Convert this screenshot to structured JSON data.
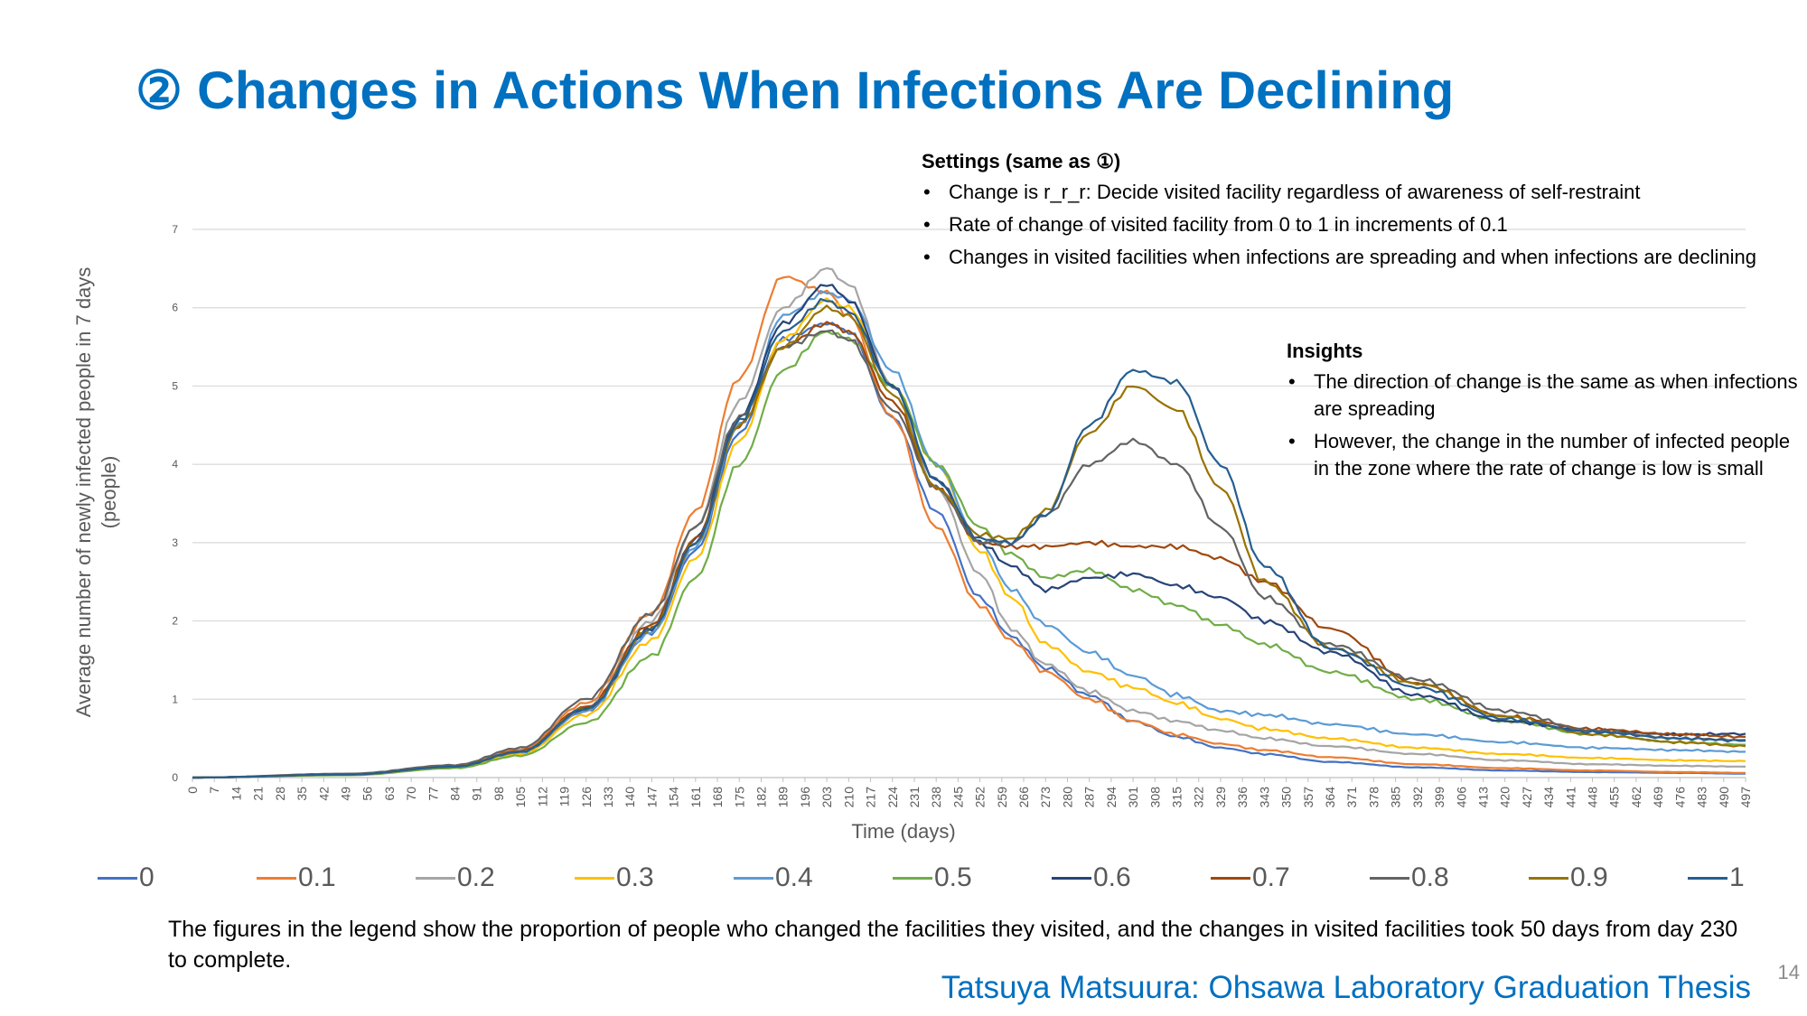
{
  "slide": {
    "title": "② Changes in Actions When Infections Are Declining",
    "settings_heading": "Settings (same as ①)",
    "settings_items": [
      "Change is r_r_r: Decide visited facility regardless of awareness of self-restraint",
      "Rate of change of visited facility from 0 to 1 in increments of 0.1",
      "Changes in visited facilities when infections are spreading and when infections are declining"
    ],
    "insights_heading": "Insights",
    "insights_items": [
      "The direction of change is the same as when infections are spreading",
      "However, the change in the number of infected people in the zone where the rate of change is low is small"
    ],
    "note": "The figures in the legend show the proportion of people who changed the facilities they visited, and the changes in visited facilities took 50 days from day 230 to complete.",
    "credit": "Tatsuya Matsuura: Ohsawa Laboratory Graduation Thesis",
    "page_number": "14"
  },
  "chart_data": {
    "type": "line",
    "xlabel": "Time (days)",
    "ylabel": "Average number of newly infected people in 7 days (people)",
    "ylim": [
      0,
      7
    ],
    "yticks": [
      0,
      1,
      2,
      3,
      4,
      5,
      6,
      7
    ],
    "xlim": [
      0,
      497
    ],
    "xtick_step": 7,
    "grid": "horizontal",
    "legend_position": "bottom",
    "x": [
      0,
      50,
      84,
      105,
      126,
      147,
      161,
      175,
      189,
      203,
      210,
      224,
      238,
      252,
      262,
      273,
      287,
      301,
      315,
      329,
      343,
      364,
      392,
      420,
      448,
      476,
      497
    ],
    "series": [
      {
        "name": "0",
        "color": "#4472C4",
        "values": [
          0,
          0.04,
          0.14,
          0.33,
          0.85,
          1.85,
          2.9,
          4.4,
          5.6,
          5.8,
          5.7,
          4.6,
          3.4,
          2.3,
          1.8,
          1.4,
          1.05,
          0.72,
          0.52,
          0.38,
          0.3,
          0.2,
          0.13,
          0.09,
          0.07,
          0.06,
          0.05
        ]
      },
      {
        "name": "0.1",
        "color": "#ED7D31",
        "values": [
          0,
          0.04,
          0.15,
          0.36,
          0.95,
          2.1,
          3.4,
          5.1,
          6.4,
          6.2,
          5.9,
          4.6,
          3.2,
          2.2,
          1.75,
          1.35,
          1.0,
          0.72,
          0.55,
          0.43,
          0.35,
          0.26,
          0.17,
          0.12,
          0.09,
          0.07,
          0.06
        ]
      },
      {
        "name": "0.2",
        "color": "#A5A5A5",
        "values": [
          0,
          0.04,
          0.14,
          0.34,
          0.9,
          2.0,
          3.2,
          4.8,
          6.0,
          6.5,
          6.3,
          5.0,
          3.7,
          2.6,
          1.9,
          1.45,
          1.1,
          0.85,
          0.72,
          0.6,
          0.5,
          0.4,
          0.3,
          0.22,
          0.17,
          0.15,
          0.14
        ]
      },
      {
        "name": "0.3",
        "color": "#FFC000",
        "values": [
          0,
          0.04,
          0.13,
          0.3,
          0.8,
          1.75,
          2.8,
          4.3,
          5.6,
          6.1,
          6.0,
          5.0,
          4.0,
          2.9,
          2.3,
          1.7,
          1.35,
          1.15,
          0.95,
          0.75,
          0.62,
          0.5,
          0.38,
          0.3,
          0.25,
          0.22,
          0.21
        ]
      },
      {
        "name": "0.4",
        "color": "#5B9BD5",
        "values": [
          0,
          0.04,
          0.14,
          0.32,
          0.85,
          1.85,
          2.95,
          4.5,
          5.9,
          6.2,
          6.1,
          5.2,
          4.0,
          3.0,
          2.4,
          1.95,
          1.6,
          1.3,
          1.05,
          0.85,
          0.8,
          0.68,
          0.55,
          0.45,
          0.38,
          0.35,
          0.33
        ]
      },
      {
        "name": "0.5",
        "color": "#70AD47",
        "values": [
          0,
          0.03,
          0.12,
          0.28,
          0.7,
          1.55,
          2.55,
          4.0,
          5.2,
          5.7,
          5.6,
          5.0,
          4.0,
          3.2,
          2.85,
          2.55,
          2.65,
          2.4,
          2.2,
          1.95,
          1.7,
          1.35,
          1.0,
          0.72,
          0.55,
          0.45,
          0.42
        ]
      },
      {
        "name": "0.6",
        "color": "#264478",
        "values": [
          0,
          0.04,
          0.14,
          0.33,
          0.88,
          1.9,
          3.05,
          4.6,
          5.8,
          6.3,
          6.1,
          5.0,
          3.8,
          3.0,
          2.7,
          2.4,
          2.55,
          2.6,
          2.45,
          2.3,
          2.0,
          1.6,
          1.05,
          0.72,
          0.6,
          0.55,
          0.56
        ]
      },
      {
        "name": "0.7",
        "color": "#9E480E",
        "values": [
          0,
          0.04,
          0.14,
          0.34,
          0.9,
          1.95,
          3.05,
          4.5,
          5.5,
          5.8,
          5.7,
          4.8,
          3.7,
          3.0,
          2.95,
          2.95,
          3.0,
          2.95,
          2.95,
          2.8,
          2.5,
          1.9,
          1.2,
          0.78,
          0.62,
          0.55,
          0.52
        ]
      },
      {
        "name": "0.8",
        "color": "#636363",
        "values": [
          0,
          0.05,
          0.16,
          0.38,
          1.0,
          2.1,
          3.2,
          4.6,
          5.5,
          5.7,
          5.6,
          4.7,
          3.7,
          3.0,
          3.0,
          3.35,
          4.0,
          4.3,
          4.0,
          3.2,
          2.3,
          1.7,
          1.25,
          0.85,
          0.6,
          0.5,
          0.48
        ]
      },
      {
        "name": "0.9",
        "color": "#997300",
        "values": [
          0,
          0.04,
          0.14,
          0.33,
          0.88,
          1.9,
          3.0,
          4.5,
          5.5,
          6.0,
          5.9,
          4.9,
          3.7,
          3.1,
          3.05,
          3.4,
          4.4,
          5.0,
          4.7,
          3.7,
          2.5,
          1.65,
          1.2,
          0.78,
          0.55,
          0.45,
          0.4
        ]
      },
      {
        "name": "1",
        "color": "#255E91",
        "values": [
          0,
          0.04,
          0.14,
          0.33,
          0.88,
          1.9,
          3.0,
          4.55,
          5.7,
          6.1,
          5.95,
          5.0,
          3.8,
          3.05,
          3.0,
          3.35,
          4.5,
          5.2,
          5.05,
          4.0,
          2.7,
          1.65,
          1.15,
          0.75,
          0.58,
          0.5,
          0.47
        ]
      }
    ]
  }
}
